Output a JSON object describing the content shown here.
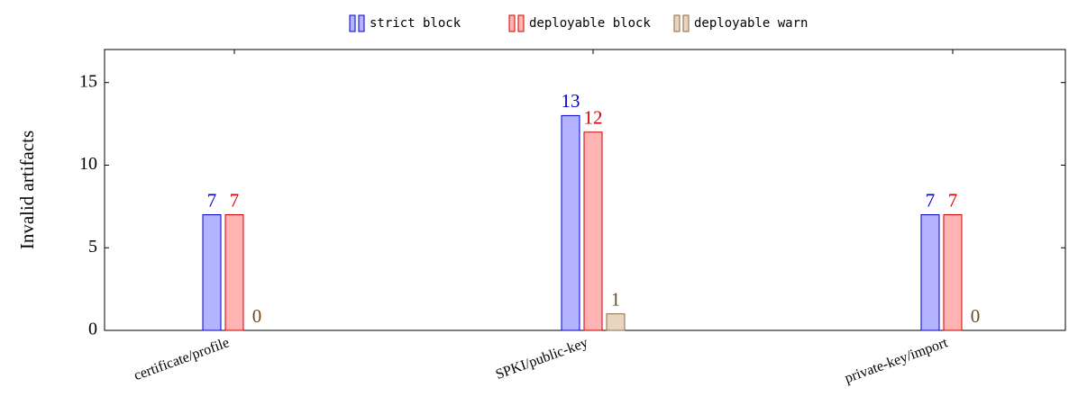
{
  "chart_data": {
    "type": "bar",
    "y_label": "Invalid artifacts",
    "categories": [
      "certificate/profile",
      "SPKI/public-key",
      "private-key/import"
    ],
    "series": [
      {
        "name": "strict block",
        "color": "#b3b3ff",
        "values": [
          7,
          13,
          7
        ]
      },
      {
        "name": "deployable block",
        "color": "#ffb3b3",
        "values": [
          7,
          12,
          7
        ]
      },
      {
        "name": "deployable warn",
        "color": "#e8d5bf",
        "values": [
          0,
          1,
          0
        ]
      }
    ],
    "ylim": [
      0,
      17
    ],
    "yticks": [
      0,
      5,
      10,
      15
    ],
    "legend": "top"
  }
}
